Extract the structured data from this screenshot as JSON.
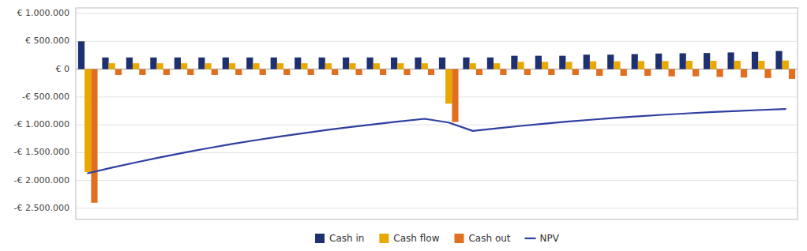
{
  "chart_data": {
    "type": "bar",
    "categories": [
      null,
      null,
      null,
      null,
      null,
      null,
      null,
      null,
      null,
      null,
      null,
      null,
      null,
      null,
      null,
      null,
      null,
      null,
      null,
      null,
      null,
      null,
      null,
      null,
      null,
      null,
      null,
      null,
      null,
      null
    ],
    "series": [
      {
        "name": "Cash in",
        "type": "bar",
        "color": "#1F3070",
        "values": [
          500000,
          210000,
          210000,
          210000,
          210000,
          210000,
          210000,
          210000,
          210000,
          210000,
          210000,
          210000,
          210000,
          210000,
          210000,
          210000,
          210000,
          210000,
          240000,
          240000,
          240000,
          260000,
          260000,
          270000,
          280000,
          285000,
          290000,
          300000,
          310000,
          325000
        ]
      },
      {
        "name": "Cash flow",
        "type": "bar",
        "color": "#E8A800",
        "values": [
          -1850000,
          105000,
          105000,
          105000,
          105000,
          105000,
          105000,
          105000,
          105000,
          105000,
          105000,
          105000,
          105000,
          105000,
          105000,
          -620000,
          105000,
          105000,
          130000,
          130000,
          130000,
          140000,
          140000,
          145000,
          145000,
          150000,
          150000,
          150000,
          150000,
          155000
        ]
      },
      {
        "name": "Cash out",
        "type": "bar",
        "color": "#E07020",
        "values": [
          -2400000,
          -105000,
          -105000,
          -105000,
          -105000,
          -105000,
          -105000,
          -105000,
          -105000,
          -105000,
          -105000,
          -105000,
          -105000,
          -105000,
          -105000,
          -950000,
          -105000,
          -105000,
          -105000,
          -105000,
          -105000,
          -120000,
          -120000,
          -120000,
          -130000,
          -130000,
          -140000,
          -150000,
          -160000,
          -175000
        ]
      },
      {
        "name": "NPV",
        "type": "line",
        "color": "#2F3FA0",
        "values": [
          -1870000,
          -1770000,
          -1675000,
          -1585000,
          -1500000,
          -1420000,
          -1345000,
          -1275000,
          -1210000,
          -1148000,
          -1090000,
          -1036000,
          -985000,
          -937000,
          -892000,
          -960000,
          -1110000,
          -1065000,
          -1020000,
          -978000,
          -940000,
          -906000,
          -874000,
          -845000,
          -818000,
          -793000,
          -771000,
          -751000,
          -733000,
          -716000
        ]
      }
    ],
    "ylim": [
      -2700000,
      1100000
    ],
    "yticks": [
      {
        "value": -2500000,
        "label": "-€ 2.500.000"
      },
      {
        "value": -2000000,
        "label": "-€ 2.000.000"
      },
      {
        "value": -1500000,
        "label": "-€ 1.500.000"
      },
      {
        "value": -1000000,
        "label": "-€ 1.000.000"
      },
      {
        "value": -500000,
        "label": "-€ 500.000"
      },
      {
        "value": 0,
        "label": "€ 0"
      },
      {
        "value": 500000,
        "label": "€ 500.000"
      },
      {
        "value": 1000000,
        "label": "€ 1.000.000"
      }
    ],
    "grid": true,
    "legend": "bottom",
    "tick_labels": "y"
  }
}
